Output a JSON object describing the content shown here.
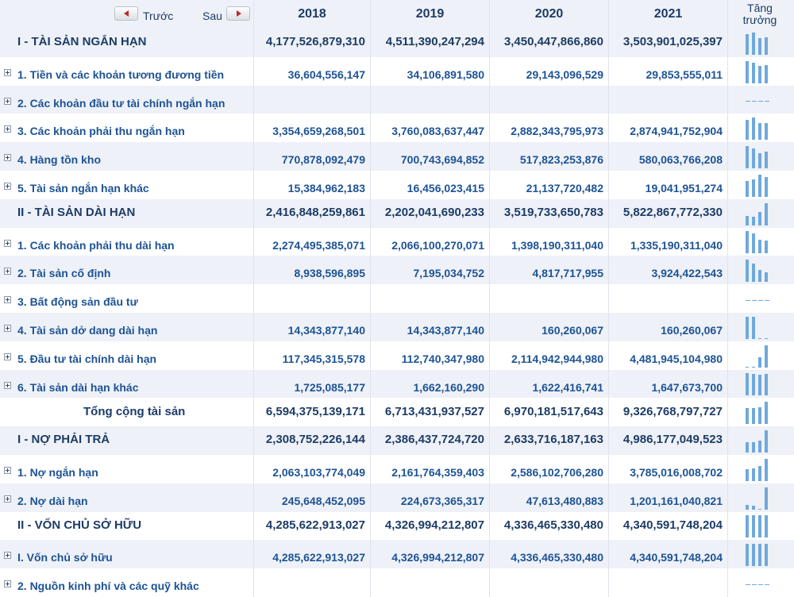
{
  "nav": {
    "prev_label": "Trước",
    "next_label": "Sau"
  },
  "years": [
    "2018",
    "2019",
    "2020",
    "2021"
  ],
  "growth_label_line1": "Tăng",
  "growth_label_line2": "trưởng",
  "colors": {
    "text_dark": "#1d3c66",
    "text_link": "#1d5395",
    "row_shade": "#eef1f7",
    "spark_bar": "#6fa8dc",
    "arrow": "#c0272d"
  },
  "rows": [
    {
      "label": "I - TÀI SẢN NGẮN HẠN",
      "level": 1,
      "expandable": false,
      "values": [
        "4,177,526,879,310",
        "4,511,390,247,294",
        "3,450,447,866,860",
        "3,503,901,025,397"
      ]
    },
    {
      "label": "1. Tiền và các khoản tương đương tiền",
      "level": 2,
      "expandable": true,
      "values": [
        "36,604,556,147",
        "34,106,891,580",
        "29,143,096,529",
        "29,853,555,011"
      ]
    },
    {
      "label": "2. Các khoản đầu tư tài chính ngắn hạn",
      "level": 2,
      "expandable": true,
      "values": [
        "",
        "",
        "",
        ""
      ]
    },
    {
      "label": "3. Các khoản phải thu ngắn hạn",
      "level": 2,
      "expandable": true,
      "values": [
        "3,354,659,268,501",
        "3,760,083,637,447",
        "2,882,343,795,973",
        "2,874,941,752,904"
      ]
    },
    {
      "label": "4. Hàng tồn kho",
      "level": 2,
      "expandable": true,
      "values": [
        "770,878,092,479",
        "700,743,694,852",
        "517,823,253,876",
        "580,063,766,208"
      ]
    },
    {
      "label": "5. Tài sản ngắn hạn khác",
      "level": 2,
      "expandable": true,
      "values": [
        "15,384,962,183",
        "16,456,023,415",
        "21,137,720,482",
        "19,041,951,274"
      ]
    },
    {
      "label": "II - TÀI SẢN DÀI HẠN",
      "level": 1,
      "expandable": false,
      "values": [
        "2,416,848,259,861",
        "2,202,041,690,233",
        "3,519,733,650,783",
        "5,822,867,772,330"
      ]
    },
    {
      "label": "1. Các khoản phải thu dài hạn",
      "level": 2,
      "expandable": true,
      "values": [
        "2,274,495,385,071",
        "2,066,100,270,071",
        "1,398,190,311,040",
        "1,335,190,311,040"
      ]
    },
    {
      "label": "2. Tài sản cố định",
      "level": 2,
      "expandable": true,
      "values": [
        "8,938,596,895",
        "7,195,034,752",
        "4,817,717,955",
        "3,924,422,543"
      ]
    },
    {
      "label": "3. Bất động sản đầu tư",
      "level": 2,
      "expandable": true,
      "values": [
        "",
        "",
        "",
        ""
      ]
    },
    {
      "label": "4. Tài sản dở dang dài hạn",
      "level": 2,
      "expandable": true,
      "values": [
        "14,343,877,140",
        "14,343,877,140",
        "160,260,067",
        "160,260,067"
      ]
    },
    {
      "label": "5. Đầu tư tài chính dài hạn",
      "level": 2,
      "expandable": true,
      "values": [
        "117,345,315,578",
        "112,740,347,980",
        "2,114,942,944,980",
        "4,481,945,104,980"
      ]
    },
    {
      "label": "6. Tài sản dài hạn khác",
      "level": 2,
      "expandable": true,
      "values": [
        "1,725,085,177",
        "1,662,160,290",
        "1,622,416,741",
        "1,647,673,700"
      ]
    },
    {
      "label": "Tổng cộng tài sản",
      "level": 0,
      "expandable": false,
      "values": [
        "6,594,375,139,171",
        "6,713,431,937,527",
        "6,970,181,517,643",
        "9,326,768,797,727"
      ]
    },
    {
      "label": "I - NỢ PHẢI TRẢ",
      "level": 1,
      "expandable": false,
      "values": [
        "2,308,752,226,144",
        "2,386,437,724,720",
        "2,633,716,187,163",
        "4,986,177,049,523"
      ]
    },
    {
      "label": "1. Nợ ngắn hạn",
      "level": 2,
      "expandable": true,
      "values": [
        "2,063,103,774,049",
        "2,161,764,359,403",
        "2,586,102,706,280",
        "3,785,016,008,702"
      ]
    },
    {
      "label": "2. Nợ dài hạn",
      "level": 2,
      "expandable": true,
      "values": [
        "245,648,452,095",
        "224,673,365,317",
        "47,613,480,883",
        "1,201,161,040,821"
      ]
    },
    {
      "label": "II - VỐN CHỦ SỞ HỮU",
      "level": 1,
      "expandable": false,
      "values": [
        "4,285,622,913,027",
        "4,326,994,212,807",
        "4,336,465,330,480",
        "4,340,591,748,204"
      ]
    },
    {
      "label": "I. Vốn chủ sở hữu",
      "level": 2,
      "expandable": true,
      "values": [
        "4,285,622,913,027",
        "4,326,994,212,807",
        "4,336,465,330,480",
        "4,340,591,748,204"
      ]
    },
    {
      "label": "2. Nguồn kinh phí và các quỹ khác",
      "level": 2,
      "expandable": true,
      "values": [
        "",
        "",
        "",
        ""
      ]
    }
  ]
}
